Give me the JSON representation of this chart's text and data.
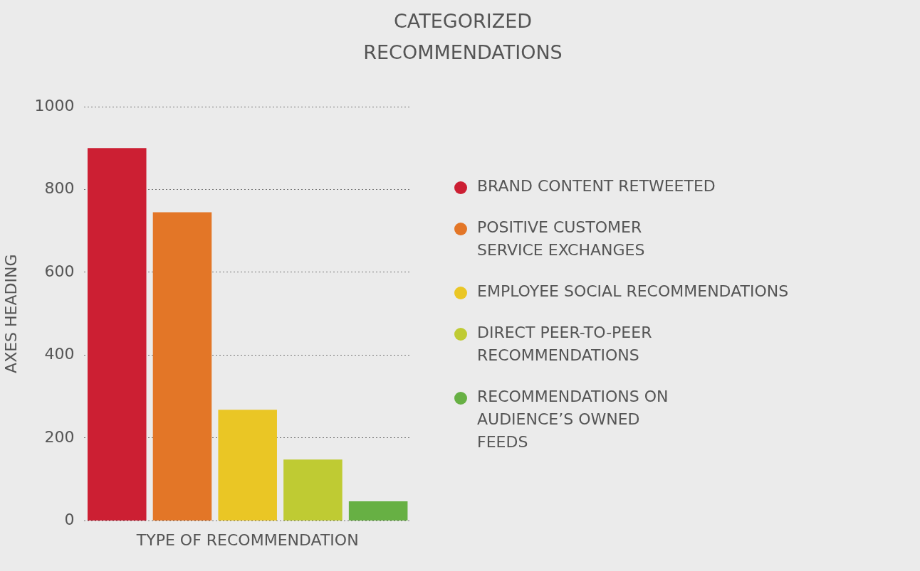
{
  "chart_data": {
    "type": "bar",
    "title": "CATEGORIZED RECOMMENDATIONS",
    "xlabel": "TYPE OF RECOMMENDATION",
    "ylabel": "AXES HEADING",
    "categories": [
      null,
      null,
      null,
      null,
      null
    ],
    "series": [
      {
        "name": "BRAND CONTENT RETWEETED",
        "color": "#cc1f33",
        "values": [
          900,
          null,
          null,
          null,
          null
        ]
      },
      {
        "name": "POSITIVE CUSTOMER SERVICE EXCHANGES",
        "color": "#e37627",
        "values": [
          null,
          745,
          null,
          null,
          null
        ]
      },
      {
        "name": "EMPLOYEE SOCIAL RECOMMENDATIONS",
        "color": "#eac625",
        "values": [
          null,
          null,
          268,
          null,
          null
        ]
      },
      {
        "name": "DIRECT PEER-TO-PEER RECOMMENDATIONS",
        "color": "#bfcb33",
        "values": [
          null,
          null,
          null,
          148,
          null
        ]
      },
      {
        "name": "RECOMMENDATIONS ON AUDIENCE’S OWNED FEEDS",
        "color": "#67b044",
        "values": [
          null,
          null,
          null,
          null,
          47
        ]
      }
    ],
    "ylim": [
      0,
      1000
    ],
    "yticks": [
      0,
      200,
      400,
      600,
      800,
      1000
    ],
    "grid": "y",
    "legend": "right"
  }
}
